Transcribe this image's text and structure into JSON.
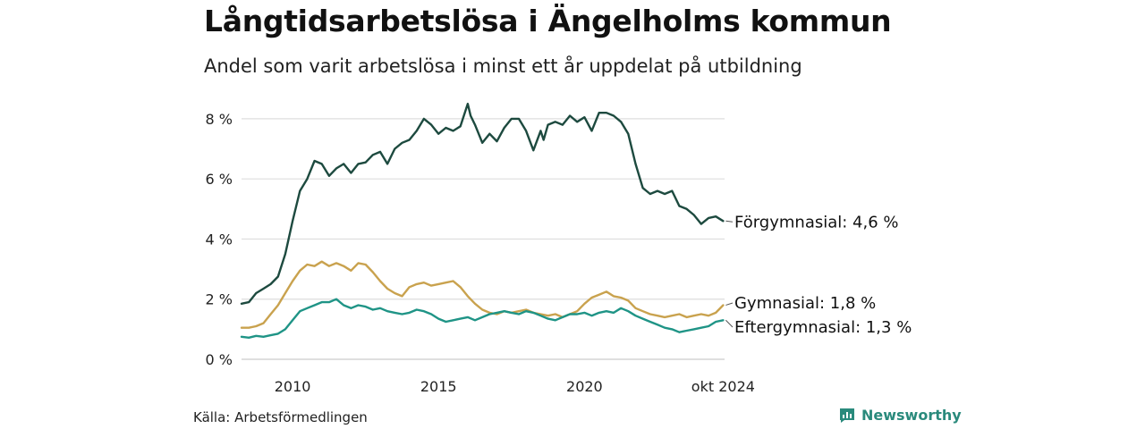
{
  "title": "Långtidsarbetslösa i Ängelholms kommun",
  "subtitle": "Andel som varit arbetslösa i minst ett år uppdelat på utbildning",
  "source": "Källa: Arbetsförmedlingen",
  "brand": "Newsworthy",
  "colors": {
    "forgymnasial": "#1d4a3f",
    "gymnasial": "#c9a24e",
    "eftergymnasial": "#1f9486",
    "grid": "#dddddd",
    "brand": "#2a8a7c"
  },
  "chart_data": {
    "type": "line",
    "title": "Långtidsarbetslösa i Ängelholms kommun",
    "subtitle": "Andel som varit arbetslösa i minst ett år uppdelat på utbildning",
    "xlabel": "",
    "ylabel": "",
    "ylim": [
      0,
      8.8
    ],
    "xlim": [
      2008.25,
      2024.8
    ],
    "y_ticks": [
      0,
      2,
      4,
      6,
      8
    ],
    "y_tick_labels": [
      "0 %",
      "2 %",
      "4 %",
      "6 %",
      "8 %"
    ],
    "x_ticks": [
      2010,
      2015,
      2020,
      2024.75
    ],
    "x_tick_labels": [
      "2010",
      "2015",
      "2020",
      "okt 2024"
    ],
    "grid": true,
    "legend": "end-labels",
    "series": [
      {
        "name": "Förgymnasial",
        "label": "Förgymnasial: 4,6 %",
        "color": "#1d4a3f",
        "x": [
          2008.25,
          2008.5,
          2008.75,
          2009.0,
          2009.25,
          2009.5,
          2009.75,
          2010.0,
          2010.25,
          2010.5,
          2010.75,
          2011.0,
          2011.25,
          2011.5,
          2011.75,
          2012.0,
          2012.25,
          2012.5,
          2012.75,
          2013.0,
          2013.25,
          2013.5,
          2013.75,
          2014.0,
          2014.25,
          2014.5,
          2014.75,
          2015.0,
          2015.25,
          2015.5,
          2015.75,
          2016.0,
          2016.1,
          2016.25,
          2016.5,
          2016.75,
          2017.0,
          2017.25,
          2017.5,
          2017.75,
          2018.0,
          2018.25,
          2018.5,
          2018.6,
          2018.75,
          2019.0,
          2019.25,
          2019.5,
          2019.75,
          2020.0,
          2020.25,
          2020.5,
          2020.75,
          2021.0,
          2021.25,
          2021.5,
          2021.75,
          2022.0,
          2022.25,
          2022.5,
          2022.75,
          2023.0,
          2023.25,
          2023.5,
          2023.75,
          2024.0,
          2024.25,
          2024.5,
          2024.75
        ],
        "values": [
          1.85,
          1.9,
          2.2,
          2.35,
          2.5,
          2.75,
          3.5,
          4.6,
          5.6,
          6.0,
          6.6,
          6.5,
          6.1,
          6.35,
          6.5,
          6.2,
          6.5,
          6.55,
          6.8,
          6.9,
          6.5,
          7.0,
          7.2,
          7.3,
          7.6,
          8.0,
          7.8,
          7.5,
          7.7,
          7.6,
          7.75,
          8.5,
          8.1,
          7.8,
          7.2,
          7.5,
          7.25,
          7.7,
          8.0,
          8.0,
          7.6,
          6.95,
          7.6,
          7.3,
          7.8,
          7.9,
          7.8,
          8.1,
          7.9,
          8.05,
          7.6,
          8.2,
          8.2,
          8.1,
          7.9,
          7.5,
          6.5,
          5.7,
          5.5,
          5.6,
          5.5,
          5.6,
          5.1,
          5.0,
          4.8,
          4.5,
          4.7,
          4.75,
          4.6
        ]
      },
      {
        "name": "Gymnasial",
        "label": "Gymnasial: 1,8 %",
        "color": "#c9a24e",
        "x": [
          2008.25,
          2008.5,
          2008.75,
          2009.0,
          2009.25,
          2009.5,
          2009.75,
          2010.0,
          2010.25,
          2010.5,
          2010.75,
          2011.0,
          2011.25,
          2011.5,
          2011.75,
          2012.0,
          2012.25,
          2012.5,
          2012.75,
          2013.0,
          2013.25,
          2013.5,
          2013.75,
          2014.0,
          2014.25,
          2014.5,
          2014.75,
          2015.0,
          2015.25,
          2015.5,
          2015.75,
          2016.0,
          2016.25,
          2016.5,
          2016.75,
          2017.0,
          2017.25,
          2017.5,
          2017.75,
          2018.0,
          2018.25,
          2018.5,
          2018.75,
          2019.0,
          2019.25,
          2019.5,
          2019.75,
          2020.0,
          2020.25,
          2020.5,
          2020.75,
          2021.0,
          2021.25,
          2021.5,
          2021.75,
          2022.0,
          2022.25,
          2022.5,
          2022.75,
          2023.0,
          2023.25,
          2023.5,
          2023.75,
          2024.0,
          2024.25,
          2024.5,
          2024.75
        ],
        "values": [
          1.05,
          1.05,
          1.1,
          1.2,
          1.5,
          1.8,
          2.2,
          2.6,
          2.95,
          3.15,
          3.1,
          3.25,
          3.1,
          3.2,
          3.1,
          2.95,
          3.2,
          3.15,
          2.9,
          2.6,
          2.35,
          2.2,
          2.1,
          2.4,
          2.5,
          2.55,
          2.45,
          2.5,
          2.55,
          2.6,
          2.4,
          2.1,
          1.85,
          1.65,
          1.55,
          1.5,
          1.6,
          1.55,
          1.6,
          1.65,
          1.55,
          1.5,
          1.45,
          1.5,
          1.4,
          1.5,
          1.6,
          1.85,
          2.05,
          2.15,
          2.25,
          2.1,
          2.05,
          1.95,
          1.7,
          1.6,
          1.5,
          1.45,
          1.4,
          1.45,
          1.5,
          1.4,
          1.45,
          1.5,
          1.45,
          1.55,
          1.8
        ]
      },
      {
        "name": "Eftergymnasial",
        "label": "Eftergymnasial: 1,3 %",
        "color": "#1f9486",
        "x": [
          2008.25,
          2008.5,
          2008.75,
          2009.0,
          2009.25,
          2009.5,
          2009.75,
          2010.0,
          2010.25,
          2010.5,
          2010.75,
          2011.0,
          2011.25,
          2011.5,
          2011.75,
          2012.0,
          2012.25,
          2012.5,
          2012.75,
          2013.0,
          2013.25,
          2013.5,
          2013.75,
          2014.0,
          2014.25,
          2014.5,
          2014.75,
          2015.0,
          2015.25,
          2015.5,
          2015.75,
          2016.0,
          2016.25,
          2016.5,
          2016.75,
          2017.0,
          2017.25,
          2017.5,
          2017.75,
          2018.0,
          2018.25,
          2018.5,
          2018.75,
          2019.0,
          2019.25,
          2019.5,
          2019.75,
          2020.0,
          2020.25,
          2020.5,
          2020.75,
          2021.0,
          2021.25,
          2021.5,
          2021.75,
          2022.0,
          2022.25,
          2022.5,
          2022.75,
          2023.0,
          2023.25,
          2023.5,
          2023.75,
          2024.0,
          2024.25,
          2024.5,
          2024.75
        ],
        "values": [
          0.75,
          0.72,
          0.78,
          0.75,
          0.8,
          0.85,
          1.0,
          1.3,
          1.6,
          1.7,
          1.8,
          1.9,
          1.9,
          2.0,
          1.8,
          1.7,
          1.8,
          1.75,
          1.65,
          1.7,
          1.6,
          1.55,
          1.5,
          1.55,
          1.65,
          1.6,
          1.5,
          1.35,
          1.25,
          1.3,
          1.35,
          1.4,
          1.3,
          1.4,
          1.5,
          1.55,
          1.6,
          1.55,
          1.5,
          1.6,
          1.55,
          1.45,
          1.35,
          1.3,
          1.4,
          1.5,
          1.5,
          1.55,
          1.45,
          1.55,
          1.6,
          1.55,
          1.7,
          1.6,
          1.45,
          1.35,
          1.25,
          1.15,
          1.05,
          1.0,
          0.9,
          0.95,
          1.0,
          1.05,
          1.1,
          1.25,
          1.3
        ]
      }
    ]
  }
}
